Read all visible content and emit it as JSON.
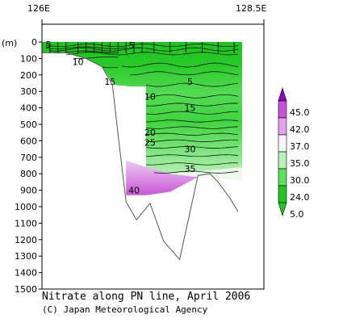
{
  "chart_data": {
    "type": "section-contour",
    "title": "Nitrate along PN line, April 2006",
    "credit": "(C) Japan Meteorological Agency",
    "x_axis": {
      "left_label": "126E",
      "right_label": "128.5E",
      "range_deg": [
        126.0,
        128.5
      ]
    },
    "y_axis": {
      "unit_label": "(m)",
      "range_m": [
        0,
        1500
      ],
      "ticks": [
        0,
        100,
        200,
        300,
        400,
        500,
        600,
        700,
        800,
        900,
        1000,
        1100,
        1200,
        1300,
        1400,
        1500
      ],
      "inverted": true
    },
    "colorbar": {
      "levels": [
        "45.0",
        "42.0",
        "37.0",
        "35.0",
        "30.0",
        "24.0",
        "5.0"
      ],
      "colors": [
        "#8e00c8",
        "#c654d8",
        "#e2a2ec",
        "#f8f8f8",
        "#b8f0b8",
        "#5ee25e",
        "#22c822"
      ]
    },
    "contour_labels": [
      {
        "text": "5",
        "lon": 126.08,
        "depth": 15
      },
      {
        "text": "5",
        "lon": 127.12,
        "depth": 20
      },
      {
        "text": "10",
        "lon": 126.45,
        "depth": 120
      },
      {
        "text": "15",
        "lon": 126.85,
        "depth": 240
      },
      {
        "text": "5",
        "lon": 127.85,
        "depth": 240
      },
      {
        "text": "10",
        "lon": 127.35,
        "depth": 330
      },
      {
        "text": "15",
        "lon": 127.85,
        "depth": 400
      },
      {
        "text": "20",
        "lon": 127.35,
        "depth": 550
      },
      {
        "text": "25",
        "lon": 127.35,
        "depth": 610
      },
      {
        "text": "30",
        "lon": 127.85,
        "depth": 650
      },
      {
        "text": "35",
        "lon": 127.85,
        "depth": 770
      },
      {
        "text": "40",
        "lon": 127.15,
        "depth": 900
      }
    ],
    "stations_lon": [
      126.0,
      126.1,
      126.2,
      126.3,
      126.45,
      126.55,
      126.65,
      126.75,
      126.85,
      126.95,
      127.05,
      127.15,
      127.25,
      127.4,
      127.6,
      127.8,
      128.0,
      128.2,
      128.4
    ],
    "bottom_profile": [
      {
        "lon": 126.0,
        "depth": 65
      },
      {
        "lon": 126.3,
        "depth": 65
      },
      {
        "lon": 126.55,
        "depth": 100
      },
      {
        "lon": 126.75,
        "depth": 150
      },
      {
        "lon": 126.88,
        "depth": 260
      },
      {
        "lon": 126.96,
        "depth": 600
      },
      {
        "lon": 127.05,
        "depth": 970
      },
      {
        "lon": 127.18,
        "depth": 1080
      },
      {
        "lon": 127.35,
        "depth": 980
      },
      {
        "lon": 127.52,
        "depth": 1210
      },
      {
        "lon": 127.72,
        "depth": 1320
      },
      {
        "lon": 127.95,
        "depth": 810
      },
      {
        "lon": 128.1,
        "depth": 800
      },
      {
        "lon": 128.2,
        "depth": 850
      },
      {
        "lon": 128.35,
        "depth": 950
      },
      {
        "lon": 128.45,
        "depth": 1030
      }
    ]
  }
}
